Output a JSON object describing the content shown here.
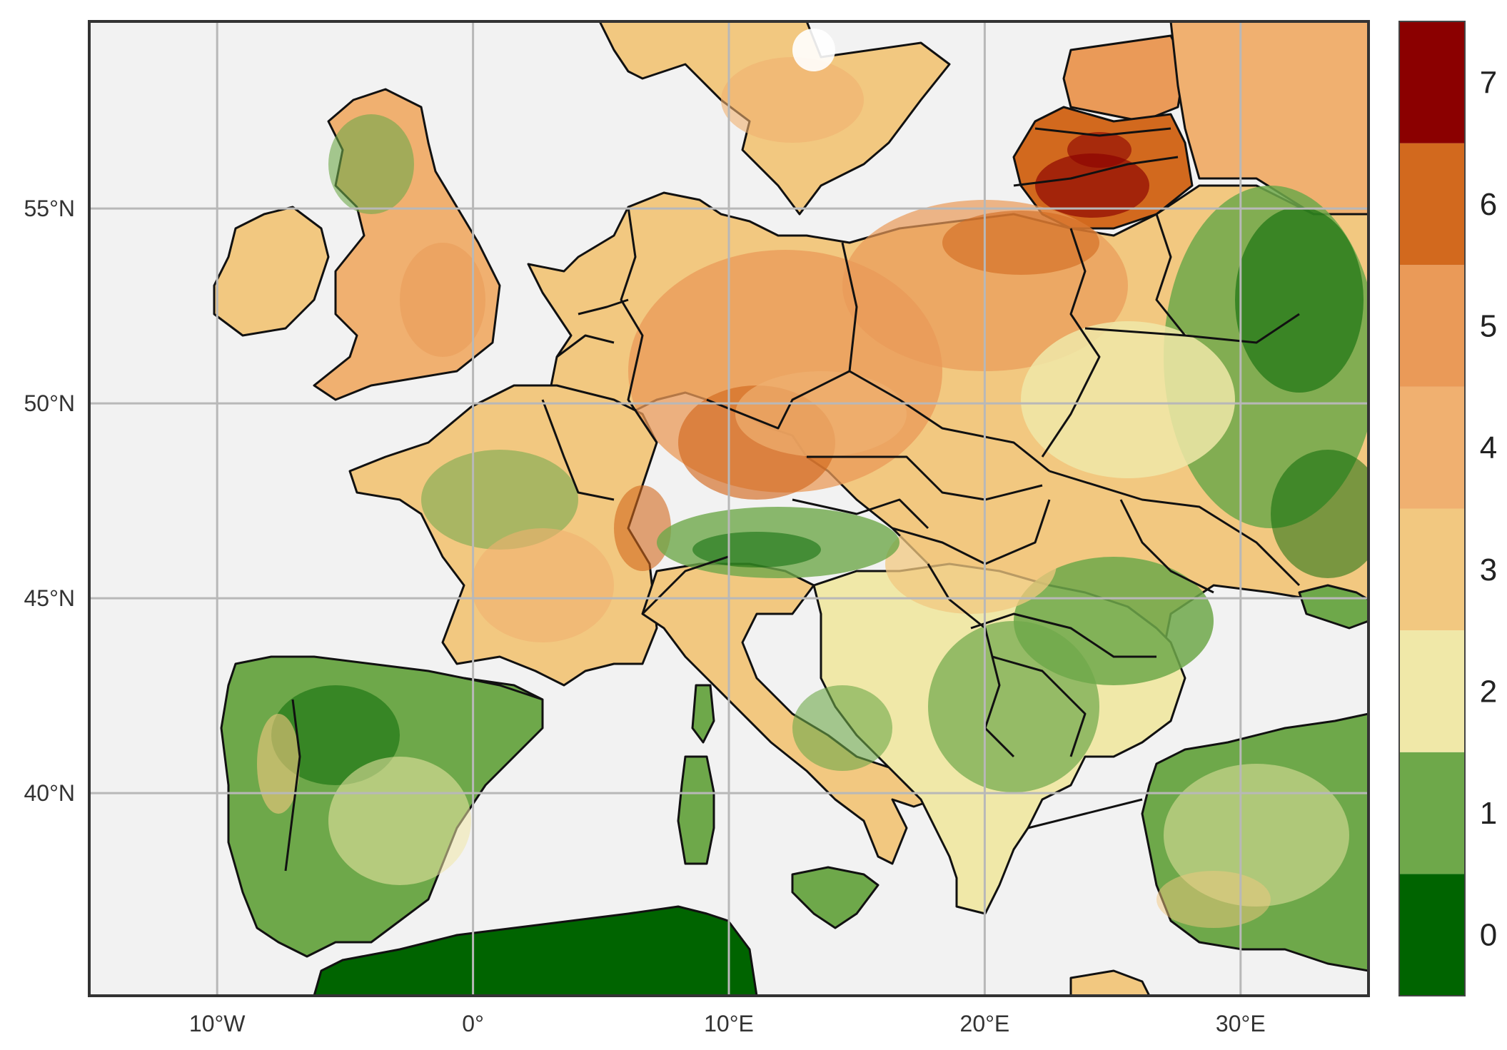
{
  "map": {
    "background_sea": "#f2f2f2",
    "frame_color": "#333333",
    "gridlines": true,
    "lon_range": [
      -15,
      35
    ],
    "lat_range": [
      34.8,
      59.8
    ],
    "lon_ticks": [
      {
        "value": -10,
        "label": "10°W"
      },
      {
        "value": 0,
        "label": "0°"
      },
      {
        "value": 10,
        "label": "10°E"
      },
      {
        "value": 20,
        "label": "20°E"
      },
      {
        "value": 30,
        "label": "30°E"
      }
    ],
    "lat_ticks": [
      {
        "value": 55,
        "label": "55°N"
      },
      {
        "value": 50,
        "label": "50°N"
      },
      {
        "value": 45,
        "label": "45°N"
      },
      {
        "value": 40,
        "label": "40°N"
      }
    ]
  },
  "colorbar": {
    "position": "right",
    "min": -0.5,
    "max": 7.5,
    "levels": [
      {
        "value": 0,
        "label": "0",
        "color": "#006400"
      },
      {
        "value": 1,
        "label": "1",
        "color": "#6ea84a"
      },
      {
        "value": 2,
        "label": "2",
        "color": "#f0e8a8"
      },
      {
        "value": 3,
        "label": "3",
        "color": "#f2c880"
      },
      {
        "value": 4,
        "label": "4",
        "color": "#f0b070"
      },
      {
        "value": 5,
        "label": "5",
        "color": "#ea9a58"
      },
      {
        "value": 6,
        "label": "6",
        "color": "#d2691e"
      },
      {
        "value": 7,
        "label": "7",
        "color": "#8b0000"
      }
    ]
  }
}
